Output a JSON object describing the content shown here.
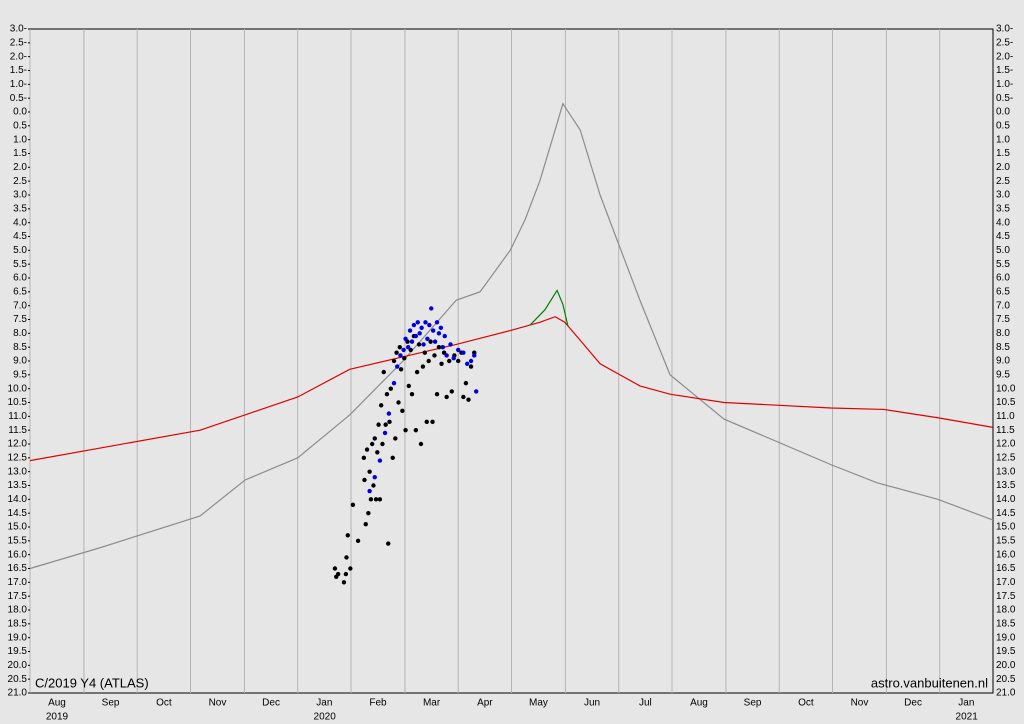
{
  "chart_data": {
    "type": "line",
    "title": "C/2019 Y4 (ATLAS)",
    "source": "astro.vanbuitenen.nl",
    "xlim": [
      2019.583,
      2021.083
    ],
    "ylim": [
      21,
      -3
    ],
    "grid": "x",
    "xticks": [
      {
        "value": 2019.583,
        "label": "Aug"
      },
      {
        "value": 2019.667,
        "label": "Sep"
      },
      {
        "value": 2019.75,
        "label": "Oct"
      },
      {
        "value": 2019.833,
        "label": "Nov"
      },
      {
        "value": 2019.917,
        "label": "Dec"
      },
      {
        "value": 2020.0,
        "label": "Jan"
      },
      {
        "value": 2020.083,
        "label": "Feb"
      },
      {
        "value": 2020.167,
        "label": "Mar"
      },
      {
        "value": 2020.25,
        "label": "Apr"
      },
      {
        "value": 2020.333,
        "label": "May"
      },
      {
        "value": 2020.417,
        "label": "Jun"
      },
      {
        "value": 2020.5,
        "label": "Jul"
      },
      {
        "value": 2020.583,
        "label": "Aug"
      },
      {
        "value": 2020.667,
        "label": "Sep"
      },
      {
        "value": 2020.75,
        "label": "Oct"
      },
      {
        "value": 2020.833,
        "label": "Nov"
      },
      {
        "value": 2020.917,
        "label": "Dec"
      },
      {
        "value": 2021.0,
        "label": "Jan"
      }
    ],
    "xtick_years": [
      {
        "value": 2019.583,
        "label": "2019"
      },
      2020,
      2021
    ],
    "yticks": [
      {
        "value": -3,
        "label": "3.0-"
      },
      {
        "value": -2.5,
        "label": "2.5-"
      },
      {
        "value": -2,
        "label": "2.0-"
      },
      {
        "value": -1.5,
        "label": "1.5-"
      },
      {
        "value": -1,
        "label": "1.0-"
      },
      {
        "value": -0.5,
        "label": "0.5-"
      },
      {
        "value": 0,
        "label": "0.0"
      },
      0.5,
      {
        "value": 1,
        "label": "1.0"
      },
      1.5,
      {
        "value": 2,
        "label": "2.0"
      },
      2.5,
      {
        "value": 3,
        "label": "3.0"
      },
      3.5,
      {
        "value": 4,
        "label": "4.0"
      },
      4.5,
      {
        "value": 5,
        "label": "5.0"
      },
      5.5,
      {
        "value": 6,
        "label": "6.0"
      },
      6.5,
      {
        "value": 7,
        "label": "7.0"
      },
      7.5,
      {
        "value": 8,
        "label": "8.0"
      },
      8.5,
      {
        "value": 9,
        "label": "9.0"
      },
      9.5,
      {
        "value": 10,
        "label": "10.0"
      },
      10.5,
      {
        "value": 11,
        "label": "11.0"
      },
      11.5,
      {
        "value": 12,
        "label": "12.0"
      },
      12.5,
      {
        "value": 13,
        "label": "13.0"
      },
      13.5,
      {
        "value": 14,
        "label": "14.0"
      },
      14.5,
      {
        "value": 15,
        "label": "15.0"
      },
      15.5,
      {
        "value": 16,
        "label": "16.0"
      },
      16.5,
      {
        "value": 17,
        "label": "17.0"
      },
      17.5,
      {
        "value": 18,
        "label": "18.0"
      },
      18.5,
      {
        "value": 19,
        "label": "19.0"
      },
      19.5,
      {
        "value": 20,
        "label": "20.0"
      },
      20.5,
      {
        "value": 21,
        "label": "21.0"
      }
    ],
    "series": [
      {
        "type": "line",
        "color": "#8c8c8c",
        "x": [
          2019.583,
          2019.692,
          2019.848,
          2019.918,
          2020.0,
          2020.081,
          2020.164,
          2020.247,
          2020.284,
          2020.331,
          2020.354,
          2020.377,
          2020.401,
          2020.413,
          2020.44,
          2020.471,
          2020.497,
          2020.533,
          2020.58,
          2020.664,
          2020.831,
          2020.902,
          2020.997,
          2021.083
        ],
        "values": [
          16.5,
          15.75,
          14.6,
          13.3,
          12.5,
          10.95,
          9.0,
          6.8,
          6.5,
          5.0,
          3.9,
          2.5,
          0.65,
          -0.3,
          0.65,
          3.0,
          4.6,
          6.8,
          9.5,
          11.1,
          12.75,
          13.4,
          14.0,
          14.75
        ]
      },
      {
        "type": "line",
        "color": "#e00000",
        "x": [
          2019.583,
          2019.848,
          2020.0,
          2020.081,
          2020.164,
          2020.247,
          2020.331,
          2020.377,
          2020.401,
          2020.416,
          2020.44,
          2020.471,
          2020.533,
          2020.58,
          2020.664,
          2020.831,
          2020.913,
          2020.997,
          2021.083
        ],
        "values": [
          12.6,
          11.5,
          10.3,
          9.3,
          8.85,
          8.4,
          7.9,
          7.6,
          7.4,
          7.6,
          8.25,
          9.1,
          9.9,
          10.2,
          10.5,
          10.7,
          10.75,
          11.05,
          11.4
        ]
      },
      {
        "type": "line",
        "color": "#008000",
        "x": [
          2020.362,
          2020.385,
          2020.404,
          2020.413,
          2020.421
        ],
        "values": [
          7.7,
          7.15,
          6.45,
          6.95,
          7.75
        ]
      },
      {
        "type": "scatter",
        "color": "#000000",
        "x": [
          2020.058,
          2020.06,
          2020.063,
          2020.072,
          2020.075,
          2020.076,
          2020.078,
          2020.082,
          2020.086,
          2020.094,
          2020.103,
          2020.104,
          2020.106,
          2020.108,
          2020.11,
          2020.112,
          2020.114,
          2020.116,
          2020.118,
          2020.12,
          2020.122,
          2020.124,
          2020.126,
          2020.128,
          2020.13,
          2020.132,
          2020.134,
          2020.137,
          2020.139,
          2020.141,
          2020.143,
          2020.145,
          2020.148,
          2020.15,
          2020.152,
          2020.154,
          2020.157,
          2020.159,
          2020.161,
          2020.163,
          2020.166,
          2020.168,
          2020.171,
          2020.173,
          2020.176,
          2020.178,
          2020.181,
          2020.184,
          2020.186,
          2020.189,
          2020.192,
          2020.195,
          2020.198,
          2020.201,
          2020.204,
          2020.207,
          2020.21,
          2020.213,
          2020.217,
          2020.22,
          2020.224,
          2020.228,
          2020.232,
          2020.236,
          2020.24,
          2020.244,
          2020.25,
          2020.255,
          2020.258,
          2020.262,
          2020.266,
          2020.27,
          2020.275
        ],
        "values": [
          16.5,
          16.8,
          16.7,
          17.0,
          16.7,
          16.1,
          15.3,
          16.5,
          14.2,
          15.5,
          12.5,
          13.3,
          14.9,
          12.2,
          14.5,
          13.0,
          14.0,
          12.0,
          13.5,
          11.8,
          14.0,
          12.3,
          11.3,
          14.0,
          10.6,
          12.0,
          9.4,
          11.3,
          10.2,
          15.6,
          11.2,
          10.0,
          12.5,
          9.0,
          11.8,
          8.7,
          10.5,
          8.5,
          9.3,
          10.8,
          8.9,
          11.5,
          8.3,
          9.9,
          8.6,
          10.2,
          8.1,
          11.5,
          9.4,
          8.4,
          12.0,
          9.2,
          8.7,
          11.2,
          9.0,
          8.3,
          11.2,
          8.8,
          10.2,
          8.5,
          9.1,
          8.7,
          10.3,
          9.0,
          10.1,
          8.8,
          9.0,
          8.7,
          10.3,
          9.8,
          10.4,
          9.2,
          8.7
        ]
      },
      {
        "type": "scatter",
        "color": "#0000e0",
        "x": [
          2020.112,
          2020.12,
          2020.128,
          2020.136,
          2020.142,
          2020.15,
          2020.155,
          2020.16,
          2020.165,
          2020.168,
          2020.172,
          2020.175,
          2020.178,
          2020.181,
          2020.184,
          2020.187,
          2020.19,
          2020.193,
          2020.196,
          2020.199,
          2020.202,
          2020.205,
          2020.208,
          2020.211,
          2020.214,
          2020.217,
          2020.22,
          2020.223,
          2020.226,
          2020.229,
          2020.232,
          2020.238,
          2020.243,
          2020.25,
          2020.258,
          2020.264,
          2020.27,
          2020.275,
          2020.278
        ],
        "values": [
          13.7,
          13.2,
          12.6,
          11.6,
          10.9,
          9.8,
          9.2,
          8.8,
          8.6,
          8.2,
          8.5,
          7.9,
          8.3,
          7.7,
          8.1,
          7.6,
          8.0,
          7.8,
          8.4,
          7.6,
          8.2,
          7.7,
          7.1,
          7.9,
          8.3,
          7.6,
          8.0,
          7.8,
          8.5,
          8.1,
          8.8,
          8.4,
          8.9,
          8.6,
          8.7,
          9.1,
          9.0,
          8.8,
          10.1
        ]
      }
    ]
  }
}
